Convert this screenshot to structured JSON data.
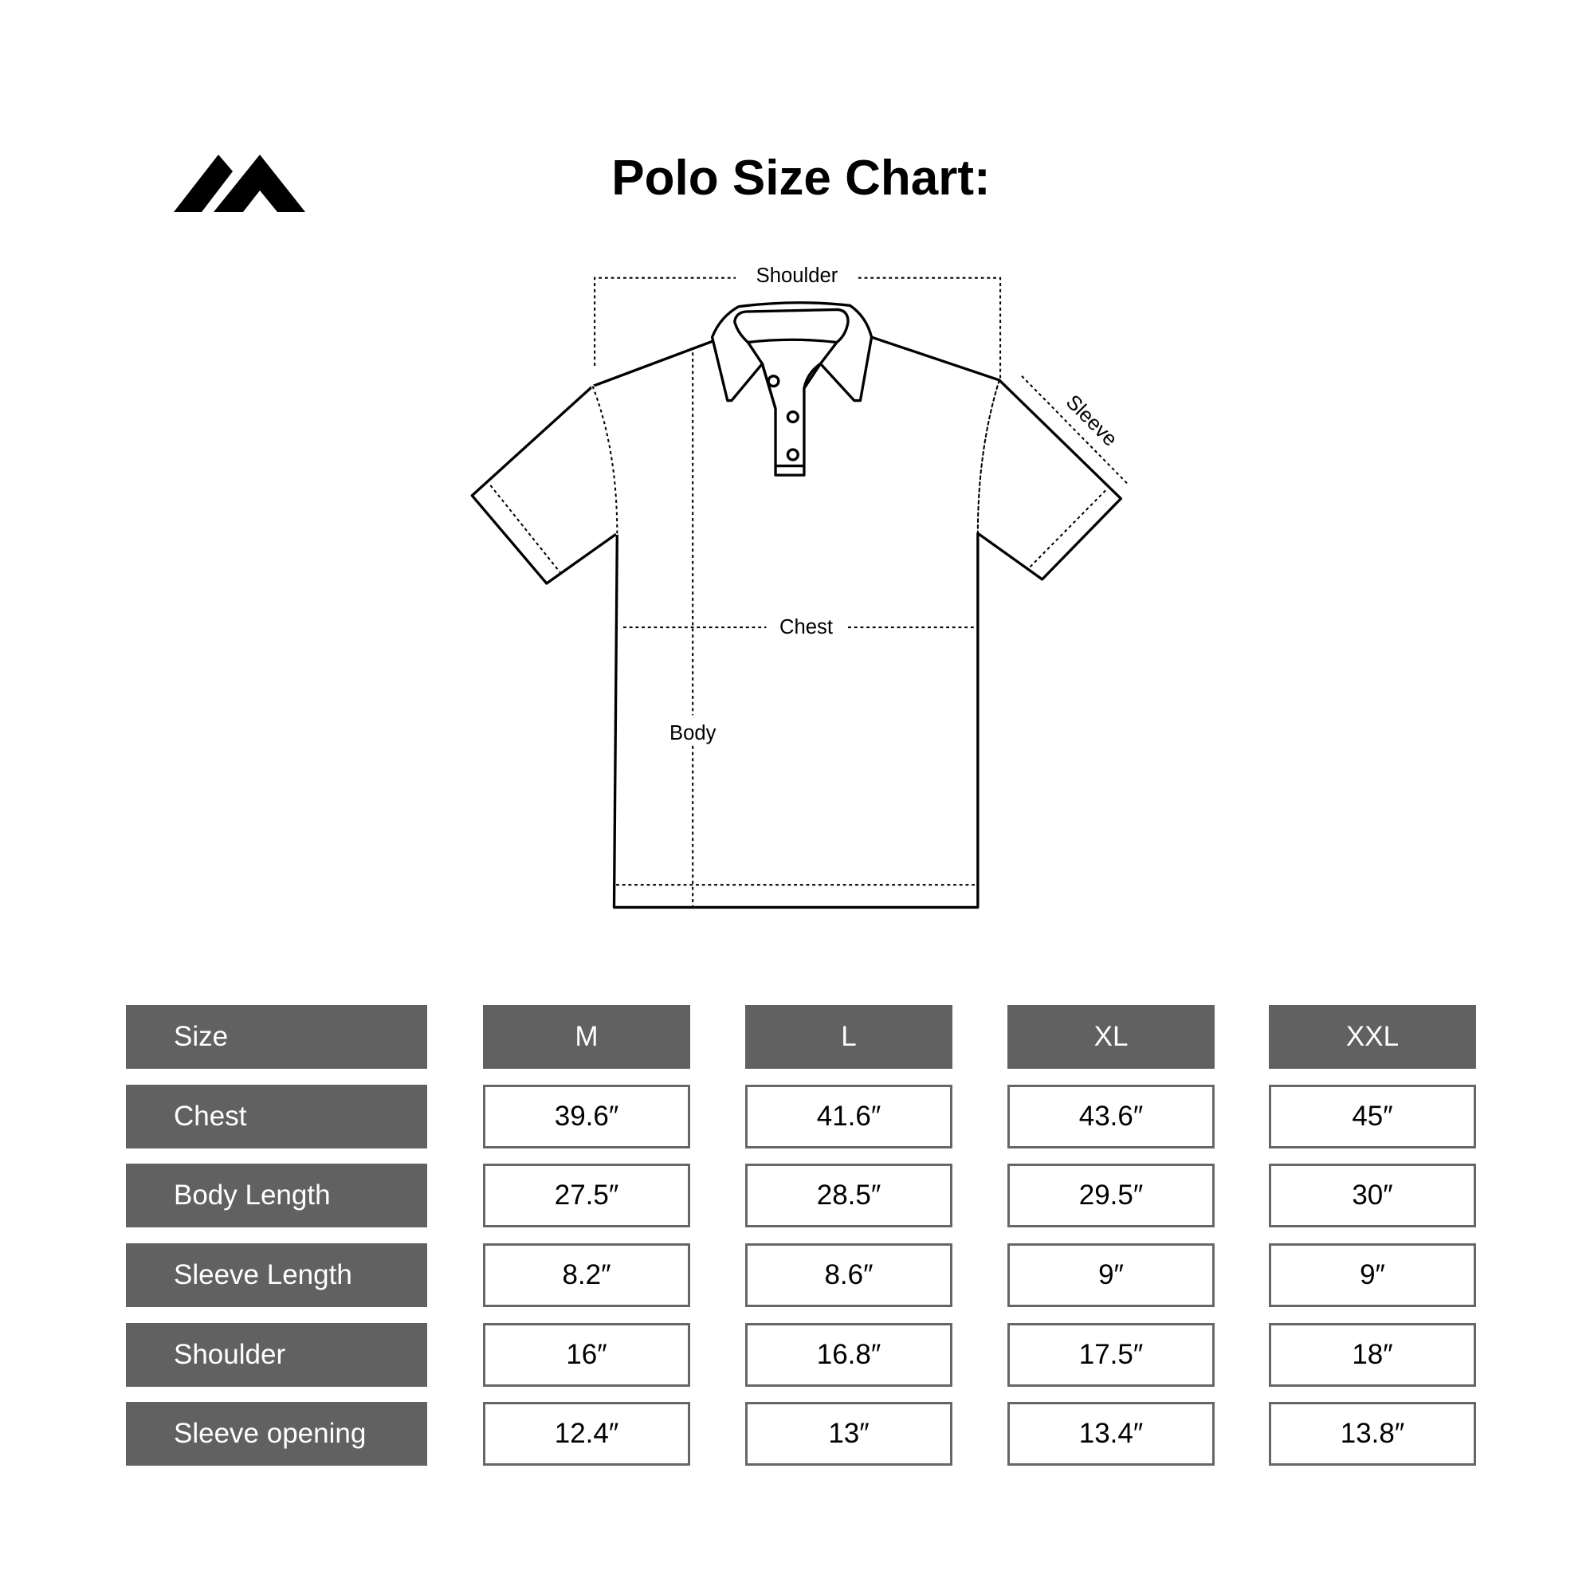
{
  "title": "Polo Size Chart:",
  "logo": {
    "name": "mountain-logo"
  },
  "diagram": {
    "labels": {
      "shoulder": "Shoulder",
      "sleeve": "Sleeve",
      "chest": "Chest",
      "body": "Body"
    }
  },
  "table": {
    "header_label": "Size",
    "sizes": [
      "M",
      "L",
      "XL",
      "XXL"
    ],
    "rows": [
      {
        "label": "Chest",
        "values": [
          "39.6″",
          "41.6″",
          "43.6″",
          "45″"
        ]
      },
      {
        "label": "Body Length",
        "values": [
          "27.5″",
          "28.5″",
          "29.5″",
          "30″"
        ]
      },
      {
        "label": "Sleeve Length",
        "values": [
          "8.2″",
          "8.6″",
          "9″",
          "9″"
        ]
      },
      {
        "label": "Shoulder",
        "values": [
          "16″",
          "16.8″",
          "17.5″",
          "18″"
        ]
      },
      {
        "label": "Sleeve opening",
        "values": [
          "12.4″",
          "13″",
          "13.4″",
          "13.8″"
        ]
      }
    ]
  },
  "colors": {
    "header_fill": "#616161",
    "cell_border": "#666666",
    "text": "#000000"
  }
}
